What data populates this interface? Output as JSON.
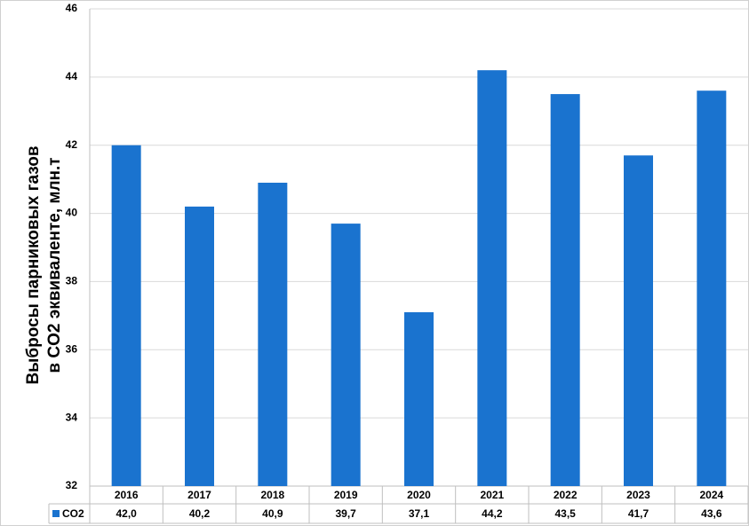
{
  "chart_data": {
    "type": "bar",
    "ylabel": [
      "Выбросы парниковых газов",
      "в CO2 эквиваленте, млн.т"
    ],
    "categories": [
      "2016",
      "2017",
      "2018",
      "2019",
      "2020",
      "2021",
      "2022",
      "2023",
      "2024"
    ],
    "series": [
      {
        "name": "CO2",
        "color": "#1a73cf",
        "values": [
          42.0,
          40.2,
          40.9,
          39.7,
          37.1,
          44.2,
          43.5,
          41.7,
          43.6
        ],
        "value_labels": [
          "42,0",
          "40,2",
          "40,9",
          "39,7",
          "37,1",
          "44,2",
          "43,5",
          "41,7",
          "43,6"
        ]
      }
    ],
    "ylim": [
      32,
      46
    ],
    "yticks": [
      32,
      34,
      36,
      38,
      40,
      42,
      44,
      46
    ],
    "grid": true
  }
}
